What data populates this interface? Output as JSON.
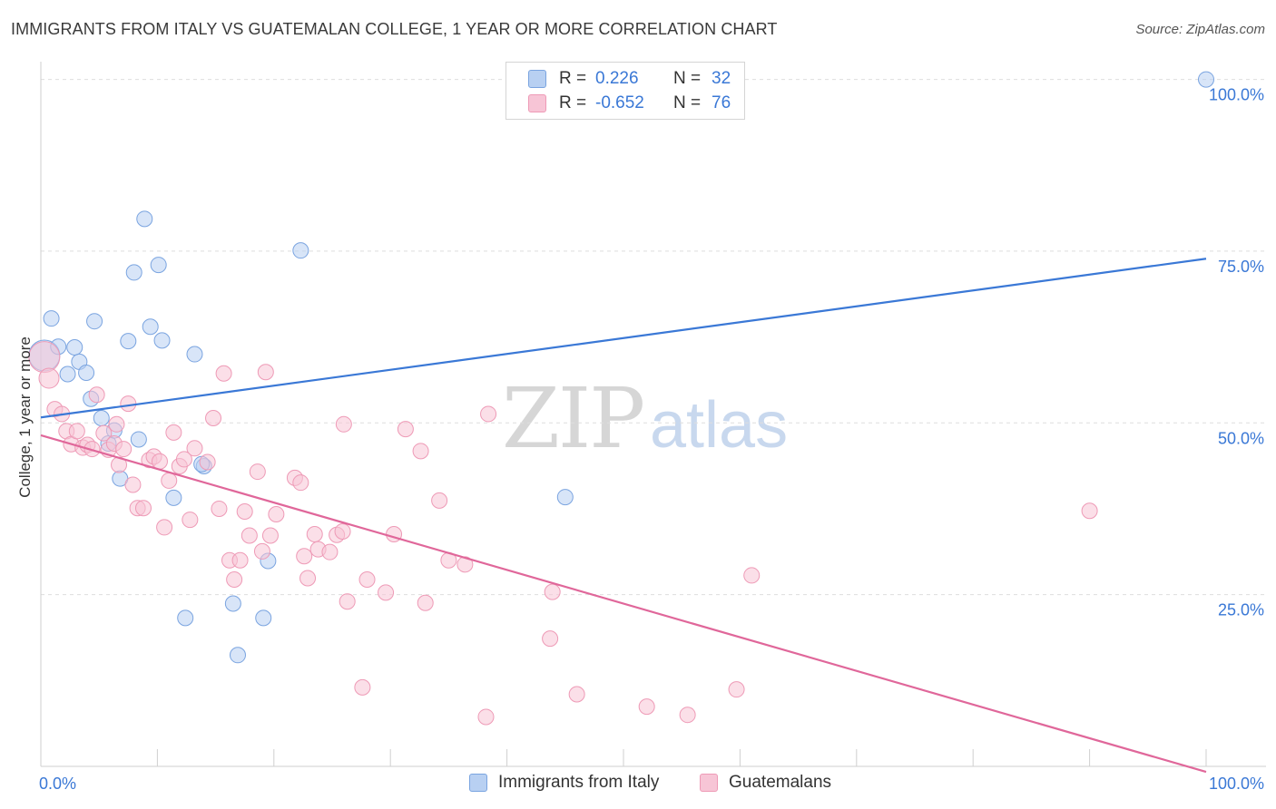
{
  "title": "IMMIGRANTS FROM ITALY VS GUATEMALAN COLLEGE, 1 YEAR OR MORE CORRELATION CHART",
  "source": "Source: ZipAtlas.com",
  "watermark": {
    "zip": "ZIP",
    "atlas": "atlas"
  },
  "legend": {
    "r_label": "R =",
    "n_label": "N =",
    "rows": [
      {
        "r": "0.226",
        "n": "32",
        "fill": "#b8d0f2",
        "stroke": "#7aa4e0"
      },
      {
        "r": "-0.652",
        "n": "76",
        "fill": "#f7c5d6",
        "stroke": "#ee9ab6"
      }
    ]
  },
  "bottom_legend": [
    {
      "label": "Immigrants from Italy",
      "fill": "#b8d0f2",
      "stroke": "#7aa4e0"
    },
    {
      "label": "Guatemalans",
      "fill": "#f7c5d6",
      "stroke": "#ee9ab6"
    }
  ],
  "chart_data": {
    "type": "scatter",
    "title": "IMMIGRANTS FROM ITALY VS GUATEMALAN COLLEGE, 1 YEAR OR MORE CORRELATION CHART",
    "xlabel": "",
    "ylabel": "College, 1 year or more",
    "xlim": [
      0,
      100
    ],
    "ylim": [
      0,
      101
    ],
    "x_tick_labels": [
      "0.0%",
      "100.0%"
    ],
    "y_tick_labels": [
      {
        "value": 25,
        "label": "25.0%"
      },
      {
        "value": 50,
        "label": "50.0%"
      },
      {
        "value": 75,
        "label": "75.0%"
      },
      {
        "value": 100,
        "label": "100.0%"
      }
    ],
    "grid": true,
    "series": [
      {
        "name": "Immigrants from Italy",
        "color": "#3a78d6",
        "fill": "#b8d0f2",
        "trend": {
          "x": [
            0,
            100
          ],
          "y": [
            50.8,
            73.9
          ]
        },
        "points": [
          {
            "x": 0.3,
            "y": 59.8,
            "size": "large"
          },
          {
            "x": 0.9,
            "y": 65.2
          },
          {
            "x": 1.5,
            "y": 61.1
          },
          {
            "x": 2.3,
            "y": 57.1
          },
          {
            "x": 2.9,
            "y": 61.0
          },
          {
            "x": 3.3,
            "y": 58.9
          },
          {
            "x": 3.9,
            "y": 57.3
          },
          {
            "x": 4.3,
            "y": 53.5
          },
          {
            "x": 4.6,
            "y": 64.8
          },
          {
            "x": 5.2,
            "y": 50.7
          },
          {
            "x": 5.8,
            "y": 47.0
          },
          {
            "x": 6.3,
            "y": 48.9
          },
          {
            "x": 6.8,
            "y": 41.9
          },
          {
            "x": 7.5,
            "y": 61.9
          },
          {
            "x": 8.0,
            "y": 71.9
          },
          {
            "x": 8.4,
            "y": 47.6
          },
          {
            "x": 8.9,
            "y": 79.7
          },
          {
            "x": 9.4,
            "y": 64.0
          },
          {
            "x": 10.1,
            "y": 73.0
          },
          {
            "x": 10.4,
            "y": 62.0
          },
          {
            "x": 11.4,
            "y": 39.1
          },
          {
            "x": 12.4,
            "y": 21.6
          },
          {
            "x": 13.2,
            "y": 60.0
          },
          {
            "x": 14.0,
            "y": 43.7
          },
          {
            "x": 16.5,
            "y": 23.7
          },
          {
            "x": 16.9,
            "y": 16.2
          },
          {
            "x": 19.1,
            "y": 21.6
          },
          {
            "x": 19.5,
            "y": 29.9
          },
          {
            "x": 22.3,
            "y": 75.1
          },
          {
            "x": 45.0,
            "y": 39.2
          },
          {
            "x": 100.0,
            "y": 100.0
          },
          {
            "x": 13.8,
            "y": 44.0
          }
        ]
      },
      {
        "name": "Guatemalans",
        "color": "#e0679a",
        "fill": "#f7c5d6",
        "trend": {
          "x": [
            0,
            100
          ],
          "y": [
            48.2,
            -0.8
          ]
        },
        "points": [
          {
            "x": 0.3,
            "y": 59.6,
            "size": "large"
          },
          {
            "x": 0.7,
            "y": 56.5,
            "size": "medium"
          },
          {
            "x": 1.2,
            "y": 52.0
          },
          {
            "x": 1.8,
            "y": 51.3
          },
          {
            "x": 2.2,
            "y": 48.8
          },
          {
            "x": 2.6,
            "y": 46.9
          },
          {
            "x": 3.1,
            "y": 48.8
          },
          {
            "x": 3.6,
            "y": 46.4
          },
          {
            "x": 4.0,
            "y": 46.8
          },
          {
            "x": 4.4,
            "y": 46.2
          },
          {
            "x": 4.8,
            "y": 54.1
          },
          {
            "x": 5.4,
            "y": 48.5
          },
          {
            "x": 5.8,
            "y": 46.1
          },
          {
            "x": 6.3,
            "y": 47.0
          },
          {
            "x": 6.5,
            "y": 49.8
          },
          {
            "x": 6.7,
            "y": 43.9
          },
          {
            "x": 7.1,
            "y": 46.2
          },
          {
            "x": 7.5,
            "y": 52.8
          },
          {
            "x": 7.9,
            "y": 41.0
          },
          {
            "x": 8.3,
            "y": 37.6
          },
          {
            "x": 8.8,
            "y": 37.6
          },
          {
            "x": 9.3,
            "y": 44.6
          },
          {
            "x": 9.7,
            "y": 45.1
          },
          {
            "x": 10.2,
            "y": 44.4
          },
          {
            "x": 10.6,
            "y": 34.8
          },
          {
            "x": 11.0,
            "y": 41.6
          },
          {
            "x": 11.4,
            "y": 48.6
          },
          {
            "x": 11.9,
            "y": 43.7
          },
          {
            "x": 12.3,
            "y": 44.7
          },
          {
            "x": 12.8,
            "y": 35.9
          },
          {
            "x": 13.2,
            "y": 46.3
          },
          {
            "x": 14.3,
            "y": 44.3
          },
          {
            "x": 14.8,
            "y": 50.7
          },
          {
            "x": 15.3,
            "y": 37.5
          },
          {
            "x": 15.7,
            "y": 57.2
          },
          {
            "x": 16.2,
            "y": 30.0
          },
          {
            "x": 16.6,
            "y": 27.2
          },
          {
            "x": 17.1,
            "y": 30.0
          },
          {
            "x": 17.5,
            "y": 37.1
          },
          {
            "x": 17.9,
            "y": 33.6
          },
          {
            "x": 18.6,
            "y": 42.9
          },
          {
            "x": 19.0,
            "y": 31.3
          },
          {
            "x": 19.3,
            "y": 57.4
          },
          {
            "x": 19.7,
            "y": 33.6
          },
          {
            "x": 20.2,
            "y": 36.7
          },
          {
            "x": 21.8,
            "y": 42.0
          },
          {
            "x": 22.3,
            "y": 41.3
          },
          {
            "x": 22.6,
            "y": 30.6
          },
          {
            "x": 22.9,
            "y": 27.4
          },
          {
            "x": 23.5,
            "y": 33.8
          },
          {
            "x": 23.8,
            "y": 31.6
          },
          {
            "x": 24.8,
            "y": 31.2
          },
          {
            "x": 25.4,
            "y": 33.7
          },
          {
            "x": 25.9,
            "y": 34.2
          },
          {
            "x": 26.0,
            "y": 49.8
          },
          {
            "x": 26.3,
            "y": 24.0
          },
          {
            "x": 27.6,
            "y": 11.5
          },
          {
            "x": 28.0,
            "y": 27.2
          },
          {
            "x": 29.6,
            "y": 25.3
          },
          {
            "x": 30.3,
            "y": 33.8
          },
          {
            "x": 31.3,
            "y": 49.1
          },
          {
            "x": 32.6,
            "y": 45.9
          },
          {
            "x": 33.0,
            "y": 23.8
          },
          {
            "x": 34.2,
            "y": 38.7
          },
          {
            "x": 35.0,
            "y": 30.0
          },
          {
            "x": 36.4,
            "y": 29.4
          },
          {
            "x": 38.2,
            "y": 7.2
          },
          {
            "x": 38.4,
            "y": 51.3
          },
          {
            "x": 43.7,
            "y": 18.6
          },
          {
            "x": 43.9,
            "y": 25.4
          },
          {
            "x": 46.0,
            "y": 10.5
          },
          {
            "x": 52.0,
            "y": 8.7
          },
          {
            "x": 55.5,
            "y": 7.5
          },
          {
            "x": 59.7,
            "y": 11.2
          },
          {
            "x": 61.0,
            "y": 27.8
          },
          {
            "x": 90.0,
            "y": 37.2
          }
        ]
      }
    ]
  }
}
